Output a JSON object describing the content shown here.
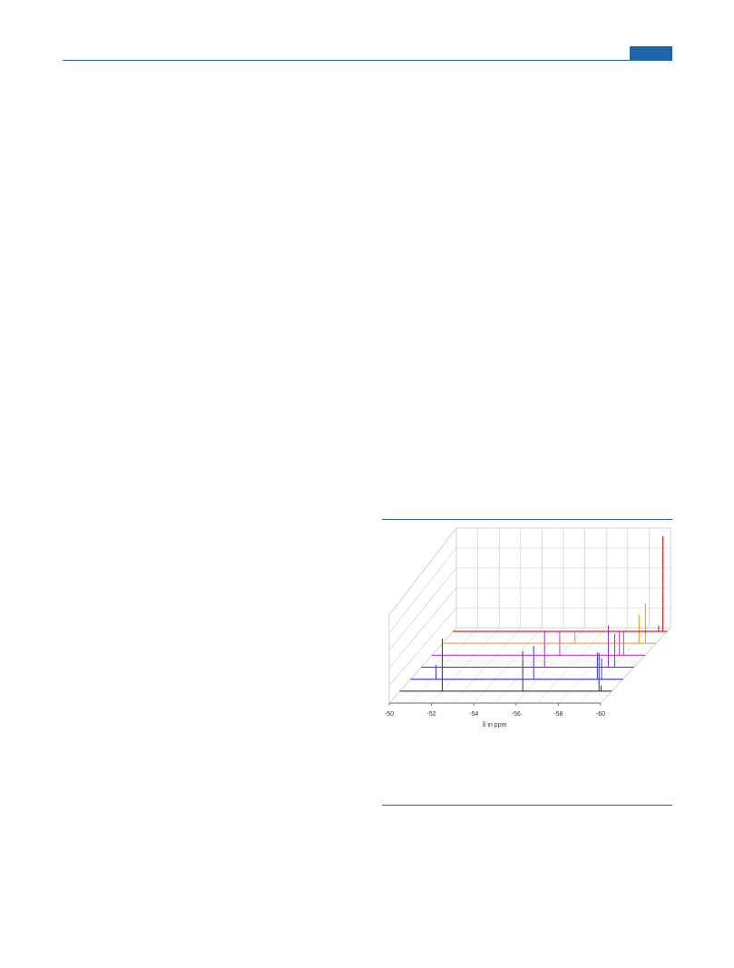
{
  "page_header": {
    "accent_color": "#1f64a8"
  },
  "figure": {
    "chart_data": {
      "type": "line",
      "style": "3D stacked NMR spectra",
      "title": "",
      "xlabel": "δ in ppm",
      "ylabel": "",
      "xlim": [
        -50,
        -60
      ],
      "x_ticks": [
        "-50",
        "-52",
        "-54",
        "-56",
        "-58",
        "-60"
      ],
      "grid": true,
      "legend": "none",
      "series": [
        {
          "color": "#333333",
          "peaks": [
            {
              "x": -52.0,
              "h": 0.55
            },
            {
              "x": -55.8,
              "h": 0.42
            },
            {
              "x": -59.4,
              "h": 0.4
            },
            {
              "x": -59.5,
              "h": 0.06
            }
          ]
        },
        {
          "color": "#3333ff",
          "peaks": [
            {
              "x": -51.2,
              "h": 0.15
            },
            {
              "x": -55.8,
              "h": 0.35
            },
            {
              "x": -58.8,
              "h": 0.28
            },
            {
              "x": -59.0,
              "h": 0.22
            }
          ]
        },
        {
          "color": "#8a2be2",
          "peaks": [
            {
              "x": -55.8,
              "h": 0.38
            },
            {
              "x": -58.8,
              "h": 0.44
            },
            {
              "x": -59.1,
              "h": 0.35
            }
          ]
        },
        {
          "color": "#cc33cc",
          "peaks": [
            {
              "x": -56.0,
              "h": 0.25
            },
            {
              "x": -58.8,
              "h": 0.25
            },
            {
              "x": -59.0,
              "h": 0.25
            }
          ]
        },
        {
          "color": "#ff8c00",
          "peaks": [
            {
              "x": -56.2,
              "h": 0.12
            },
            {
              "x": -59.2,
              "h": 0.3
            },
            {
              "x": -59.5,
              "h": 0.42
            }
          ]
        },
        {
          "color": "#e60000",
          "peaks": [
            {
              "x": -59.6,
              "h": 0.06
            },
            {
              "x": -59.8,
              "h": 1.0
            }
          ]
        }
      ]
    }
  }
}
